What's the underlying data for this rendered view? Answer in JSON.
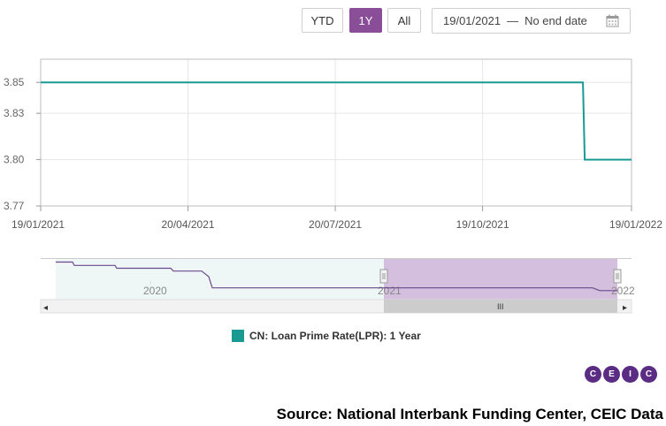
{
  "toolbar": {
    "ranges": [
      {
        "label": "YTD",
        "active": false
      },
      {
        "label": "1Y",
        "active": true
      },
      {
        "label": "All",
        "active": false
      }
    ],
    "date_from": "19/01/2021",
    "separator": "—",
    "date_to": "No end date",
    "calendar_icon": "calendar-icon"
  },
  "colors": {
    "series": "#1a9a92",
    "accent": "#8a4d98",
    "navigator_line": "#6a4a8c",
    "navigator_fill_left": "#eef6f6",
    "navigator_fill_selected": "#d0b8dc"
  },
  "chart_data": {
    "type": "line",
    "x": [
      "19/01/2021",
      "20/12/2021",
      "20/12/2021",
      "19/01/2022"
    ],
    "series": [
      {
        "name": "CN: Loan Prime Rate(LPR): 1 Year",
        "values": [
          3.85,
          3.85,
          3.8,
          3.8
        ]
      }
    ],
    "xticks": [
      "19/01/2021",
      "20/04/2021",
      "20/07/2021",
      "19/10/2021",
      "19/01/2022"
    ],
    "yticks": [
      "3.77",
      "3.80",
      "3.83",
      "3.85"
    ],
    "ylim": [
      3.77,
      3.865
    ],
    "xlim": [
      "19/01/2021",
      "19/01/2022"
    ],
    "grid": true,
    "legend": "bottom-center"
  },
  "navigator": {
    "labels": [
      "2020",
      "2021",
      "2022"
    ],
    "x": [
      "2019",
      "2019",
      "2019",
      "2019",
      "2019",
      "2019",
      "2019",
      "2020",
      "2020",
      "2020",
      "2020",
      "2021",
      "2021",
      "2021",
      "2021",
      "2021"
    ],
    "values": [
      4.31,
      4.31,
      4.25,
      4.25,
      4.2,
      4.2,
      4.15,
      4.15,
      4.05,
      4.05,
      3.85,
      3.85,
      3.85,
      3.85,
      3.8,
      3.8
    ],
    "scroll_left": "◂",
    "scroll_right": "▸",
    "scroll_grip": "III"
  },
  "legend": {
    "label": "CN: Loan Prime Rate(LPR): 1 Year"
  },
  "logo": [
    "C",
    "E",
    "I",
    "C"
  ],
  "source": "Source: National Interbank Funding Center, CEIC Data"
}
